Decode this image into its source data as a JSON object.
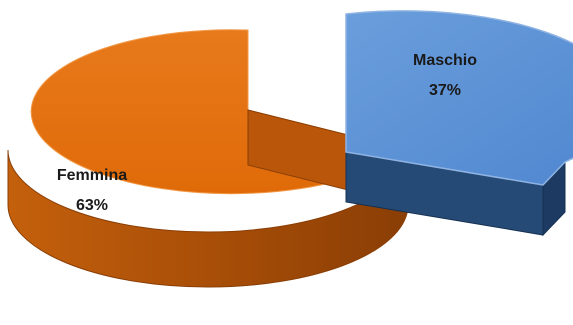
{
  "chart_data": {
    "type": "pie",
    "style": "3d-exploded",
    "legend": "none",
    "slices": [
      {
        "label": "Femmina",
        "value": 63,
        "display": "63%",
        "color": "#e46c0a",
        "side_color": "#a84e07"
      },
      {
        "label": "Maschio",
        "value": 37,
        "display": "37%",
        "color": "#558ed5",
        "side_color": "#1f3a5f"
      }
    ]
  }
}
